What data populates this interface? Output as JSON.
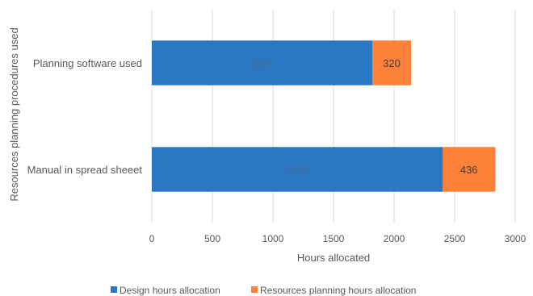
{
  "chart_data": {
    "type": "bar",
    "orientation": "horizontal",
    "stacked": true,
    "title": "",
    "xlabel": "Hours allocated",
    "ylabel": "Resources planning procedures used",
    "xlim": [
      0,
      3000
    ],
    "xticks": [
      "0",
      "500",
      "1000",
      "1500",
      "2000",
      "2500",
      "3000"
    ],
    "grid": "vertical",
    "legend_position": "bottom",
    "categories": [
      "Planning software used",
      "Manual in spread sheeet"
    ],
    "series": [
      {
        "name": "Design hours allocation",
        "color": "#2a78c4",
        "values": [
          1820,
          2400
        ],
        "labels": [
          "1820",
          "2400"
        ]
      },
      {
        "name": "Resources planning hours allocation",
        "color": "#fe8139",
        "values": [
          320,
          436
        ],
        "labels": [
          "320",
          "436"
        ]
      }
    ]
  }
}
